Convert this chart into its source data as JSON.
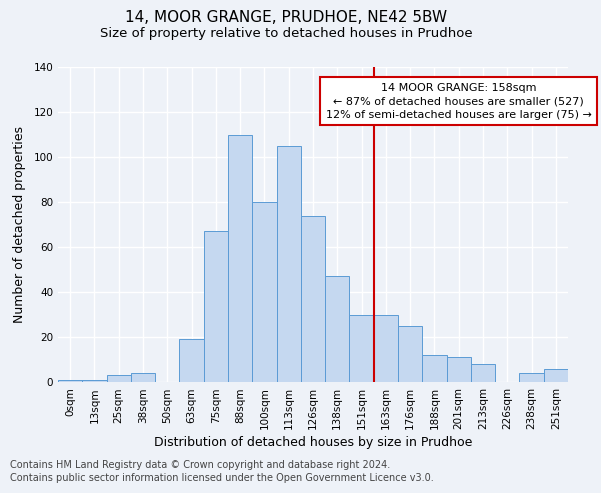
{
  "title": "14, MOOR GRANGE, PRUDHOE, NE42 5BW",
  "subtitle": "Size of property relative to detached houses in Prudhoe",
  "xlabel": "Distribution of detached houses by size in Prudhoe",
  "ylabel": "Number of detached properties",
  "bar_labels": [
    "0sqm",
    "13sqm",
    "25sqm",
    "38sqm",
    "50sqm",
    "63sqm",
    "75sqm",
    "88sqm",
    "100sqm",
    "113sqm",
    "126sqm",
    "138sqm",
    "151sqm",
    "163sqm",
    "176sqm",
    "188sqm",
    "201sqm",
    "213sqm",
    "226sqm",
    "238sqm",
    "251sqm"
  ],
  "bar_values": [
    1,
    1,
    3,
    4,
    0,
    19,
    67,
    110,
    80,
    105,
    74,
    47,
    30,
    30,
    25,
    12,
    11,
    8,
    0,
    4,
    6
  ],
  "bar_color": "#c5d8f0",
  "bar_edge_color": "#5b9bd5",
  "vline_x_index": 12.5,
  "vline_color": "#cc0000",
  "annotation_text": "14 MOOR GRANGE: 158sqm\n← 87% of detached houses are smaller (527)\n12% of semi-detached houses are larger (75) →",
  "annotation_box_color": "#ffffff",
  "annotation_box_edge": "#cc0000",
  "ylim": [
    0,
    140
  ],
  "yticks": [
    0,
    20,
    40,
    60,
    80,
    100,
    120,
    140
  ],
  "footer1": "Contains HM Land Registry data © Crown copyright and database right 2024.",
  "footer2": "Contains public sector information licensed under the Open Government Licence v3.0.",
  "background_color": "#eef2f8",
  "grid_color": "#ffffff",
  "title_fontsize": 11,
  "subtitle_fontsize": 9.5,
  "axis_label_fontsize": 9,
  "tick_fontsize": 7.5,
  "footer_fontsize": 7
}
